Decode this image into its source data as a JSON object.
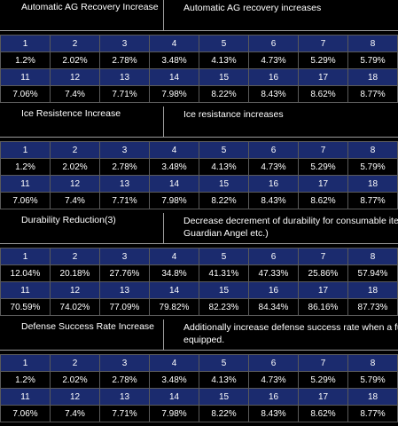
{
  "sections": [
    {
      "name": "Automatic AG Recovery Increase",
      "description": "Automatic AG recovery increases",
      "levels_a": [
        "1",
        "2",
        "3",
        "4",
        "5",
        "6",
        "7",
        "8"
      ],
      "values_a": [
        "1.2%",
        "2.02%",
        "2.78%",
        "3.48%",
        "4.13%",
        "4.73%",
        "5.29%",
        "5.79%"
      ],
      "levels_b": [
        "11",
        "12",
        "13",
        "14",
        "15",
        "16",
        "17",
        "18"
      ],
      "values_b": [
        "7.06%",
        "7.4%",
        "7.71%",
        "7.98%",
        "8.22%",
        "8.43%",
        "8.62%",
        "8.77%"
      ]
    },
    {
      "name": "Ice Resistence Increase",
      "description": "Ice resistance increases",
      "levels_a": [
        "1",
        "2",
        "3",
        "4",
        "5",
        "6",
        "7",
        "8"
      ],
      "values_a": [
        "1.2%",
        "2.02%",
        "2.78%",
        "3.48%",
        "4.13%",
        "4.73%",
        "5.29%",
        "5.79%"
      ],
      "levels_b": [
        "11",
        "12",
        "13",
        "14",
        "15",
        "16",
        "17",
        "18"
      ],
      "values_b": [
        "7.06%",
        "7.4%",
        "7.71%",
        "7.98%",
        "8.22%",
        "8.43%",
        "8.62%",
        "8.77%"
      ]
    },
    {
      "name": "Durability Reduction(3)",
      "description": "Decrease decrement of durability for consumable item\nGuardian Angel etc.)",
      "levels_a": [
        "1",
        "2",
        "3",
        "4",
        "5",
        "6",
        "7",
        "8"
      ],
      "values_a": [
        "12.04%",
        "20.18%",
        "27.76%",
        "34.8%",
        "41.31%",
        "47.33%",
        "25.86%",
        "57.94%"
      ],
      "levels_b": [
        "11",
        "12",
        "13",
        "14",
        "15",
        "16",
        "17",
        "18"
      ],
      "values_b": [
        "70.59%",
        "74.02%",
        "77.09%",
        "79.82%",
        "82.23%",
        "84.34%",
        "86.16%",
        "87.73%"
      ]
    },
    {
      "name": "Defense Success Rate Increase",
      "description": "Additionally increase defense success rate when a fu\nequipped.",
      "levels_a": [
        "1",
        "2",
        "3",
        "4",
        "5",
        "6",
        "7",
        "8"
      ],
      "values_a": [
        "1.2%",
        "2.02%",
        "2.78%",
        "3.48%",
        "4.13%",
        "4.73%",
        "5.29%",
        "5.79%"
      ],
      "levels_b": [
        "11",
        "12",
        "13",
        "14",
        "15",
        "16",
        "17",
        "18"
      ],
      "values_b": [
        "7.06%",
        "7.4%",
        "7.71%",
        "7.98%",
        "8.22%",
        "8.43%",
        "8.62%",
        "8.77%"
      ]
    }
  ]
}
